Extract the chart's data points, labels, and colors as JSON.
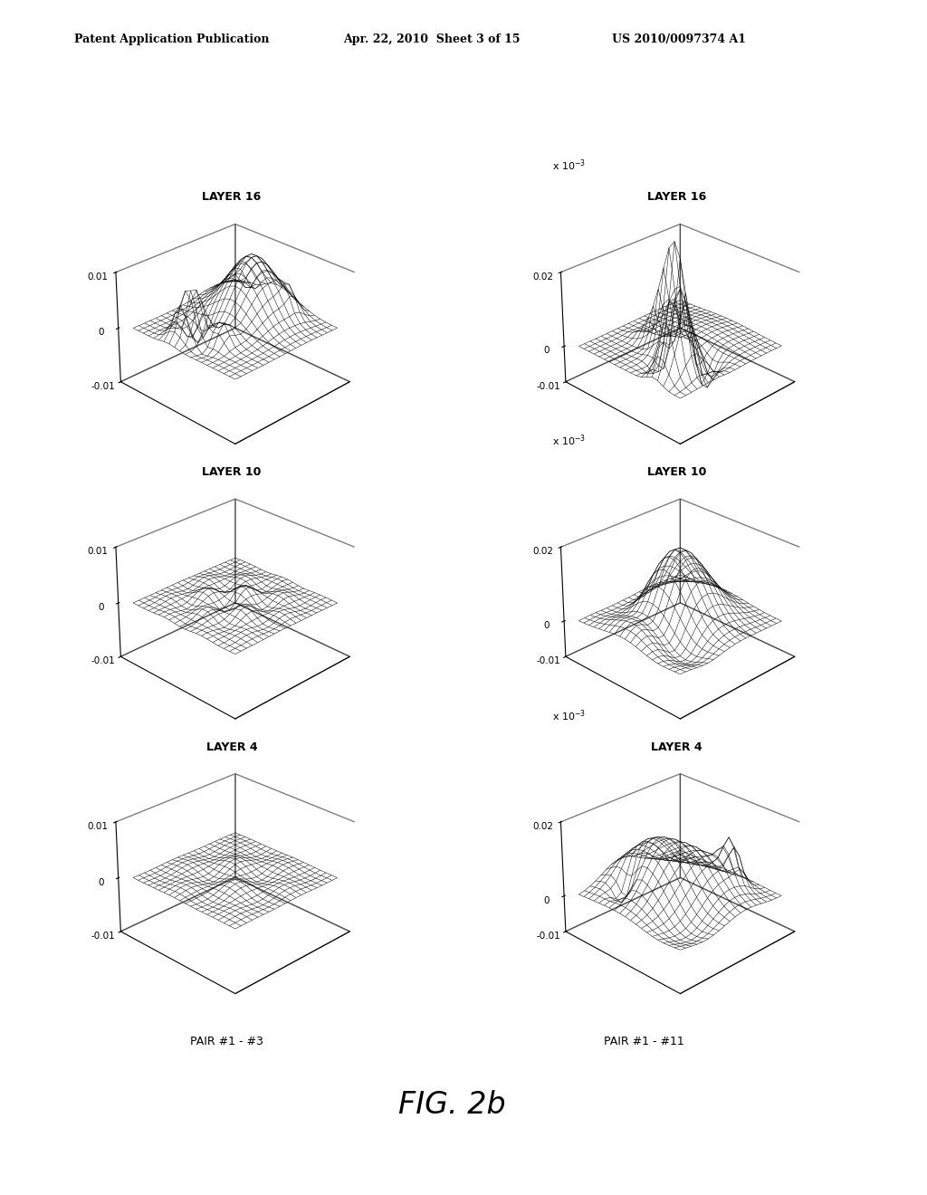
{
  "header_left": "Patent Application Publication",
  "header_mid": "Apr. 22, 2010  Sheet 3 of 15",
  "header_right": "US 2010/0097374 A1",
  "figure_label": "FIG. 2b",
  "pair_label_left": "PAIR #1 - #3",
  "pair_label_right": "PAIR #1 - #11",
  "row_labels": [
    "LAYER 16",
    "LAYER 10",
    "LAYER 4"
  ],
  "scale_note": "x 10",
  "background_color": "#ffffff",
  "line_color": "#000000",
  "plots": [
    {
      "row": 0,
      "col": 0,
      "zlim": [
        -0.01,
        0.01
      ],
      "zticks": [
        -0.01,
        0,
        0.01
      ],
      "ztick_labels": [
        "-0.01",
        "0",
        "0.01"
      ],
      "scale": false
    },
    {
      "row": 0,
      "col": 1,
      "zlim": [
        -0.01,
        0.02
      ],
      "zticks": [
        -0.01,
        0,
        0.02
      ],
      "ztick_labels": [
        "-0.01",
        "0",
        "0.02"
      ],
      "scale": true
    },
    {
      "row": 1,
      "col": 0,
      "zlim": [
        -0.01,
        0.01
      ],
      "zticks": [
        -0.01,
        0,
        0.01
      ],
      "ztick_labels": [
        "-0.01",
        "0",
        "0.01"
      ],
      "scale": false
    },
    {
      "row": 1,
      "col": 1,
      "zlim": [
        -0.01,
        0.02
      ],
      "zticks": [
        -0.01,
        0,
        0.02
      ],
      "ztick_labels": [
        "-0.01",
        "0",
        "0.02"
      ],
      "scale": true
    },
    {
      "row": 2,
      "col": 0,
      "zlim": [
        -0.01,
        0.01
      ],
      "zticks": [
        -0.01,
        0,
        0.01
      ],
      "ztick_labels": [
        "-0.01",
        "0",
        "0.01"
      ],
      "scale": false
    },
    {
      "row": 2,
      "col": 1,
      "zlim": [
        -0.01,
        0.02
      ],
      "zticks": [
        -0.01,
        0,
        0.02
      ],
      "ztick_labels": [
        "-0.01",
        "0",
        "0.02"
      ],
      "scale": true
    }
  ]
}
